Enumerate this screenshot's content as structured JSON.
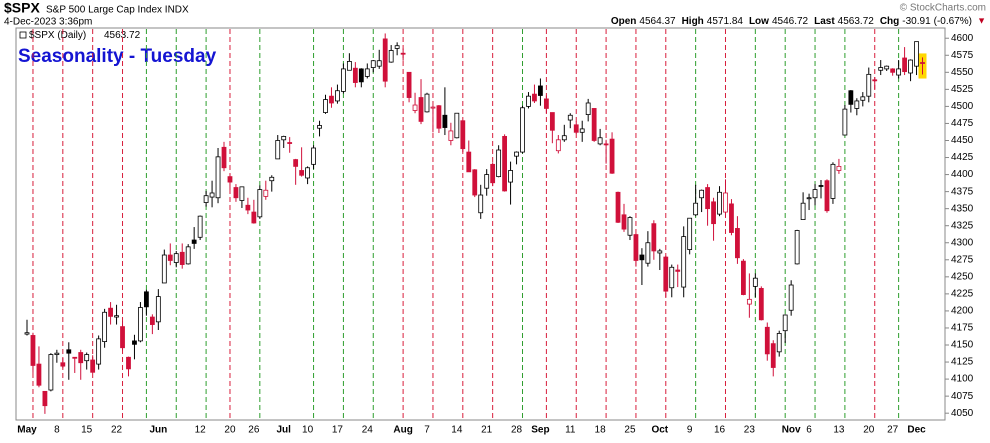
{
  "chart_data": {
    "type": "candlestick",
    "symbol": "$SPX",
    "name": "S&P 500 Large Cap Index INDX",
    "datetime": "4-Dec-2023 3:36pm",
    "credit": "© StockCharts.com",
    "quote": [
      {
        "label": "Open",
        "value": 4564.37
      },
      {
        "label": "High",
        "value": 4571.84
      },
      {
        "label": "Low",
        "value": 4546.72
      },
      {
        "label": "Last",
        "value": 4563.72
      },
      {
        "label": "Chg",
        "value": -30.91
      }
    ],
    "chg_pct": {
      "value": -0.67,
      "label": "(-0.67%)"
    },
    "chg_arrow": "▼",
    "legend": "$SPX (Daily)",
    "legend_value": 4563.72,
    "title": "Seasonality - Tuesday",
    "up_color": "#2e9e2e",
    "down_color": "#d81e3c",
    "candle_up_color": "#000000",
    "candle_down_color": "#d0103a",
    "categories": [
      "May",
      null,
      null,
      null,
      null,
      "8",
      null,
      null,
      null,
      null,
      "15",
      null,
      null,
      null,
      null,
      "22",
      null,
      null,
      null,
      null,
      null,
      null,
      "Jun",
      null,
      null,
      null,
      null,
      null,
      null,
      "12",
      null,
      null,
      null,
      null,
      "20",
      null,
      null,
      null,
      "26",
      null,
      null,
      null,
      null,
      "Jul",
      null,
      null,
      null,
      "10",
      null,
      null,
      null,
      null,
      "17",
      null,
      null,
      null,
      null,
      "24",
      null,
      null,
      null,
      null,
      null,
      "Aug",
      null,
      null,
      null,
      "7",
      null,
      null,
      null,
      null,
      "14",
      null,
      null,
      null,
      null,
      "21",
      null,
      null,
      null,
      null,
      "28",
      null,
      null,
      null,
      "Sep",
      null,
      null,
      null,
      null,
      "11",
      null,
      null,
      null,
      null,
      "18",
      null,
      null,
      null,
      null,
      "25",
      null,
      null,
      null,
      null,
      "Oct",
      null,
      null,
      null,
      null,
      "9",
      null,
      null,
      null,
      null,
      "16",
      null,
      null,
      null,
      null,
      "23",
      null,
      null,
      null,
      null,
      null,
      null,
      "Nov",
      null,
      null,
      "6",
      null,
      null,
      null,
      null,
      "13",
      null,
      null,
      null,
      null,
      "20",
      null,
      null,
      null,
      "27",
      null,
      null,
      null,
      "Dec",
      null
    ],
    "tuesdays": [
      1,
      6,
      11,
      16,
      20,
      25,
      30,
      34,
      39,
      48,
      53,
      58,
      63,
      68,
      73,
      78,
      83,
      87,
      92,
      97,
      102,
      107,
      112,
      117,
      122,
      127,
      132,
      137,
      142,
      146
    ],
    "open": [
      4166,
      4164,
      4122,
      4082,
      4084,
      4136,
      4124,
      4143,
      4132,
      4139,
      4127,
      4128,
      4122,
      4155,
      4204,
      4191,
      4177,
      4132,
      4156,
      4156,
      4228,
      4191,
      4184,
      4241,
      4282,
      4271,
      4286,
      4269,
      4304,
      4308,
      4359,
      4367,
      4366,
      4440,
      4397,
      4381,
      4362,
      4355,
      4345,
      4338,
      4368,
      4391,
      4423,
      4451,
      4447,
      4422,
      4406,
      4395,
      4415,
      4468,
      4491,
      4515,
      4508,
      4522,
      4553,
      4556,
      4555,
      4544,
      4557,
      4559,
      4599,
      4565,
      4585,
      4578,
      4550,
      4494,
      4513,
      4492,
      4498,
      4501,
      4487,
      4450,
      4454,
      4479,
      4433,
      4407,
      4344,
      4380,
      4415,
      4397,
      4456,
      4389,
      4427,
      4433,
      4500,
      4518,
      4530,
      4511,
      4491,
      4435,
      4451,
      4480,
      4473,
      4462,
      4488,
      4497,
      4445,
      4445,
      4452,
      4374,
      4341,
      4311,
      4312,
      4282,
      4270,
      4328,
      4285,
      4279,
      4234,
      4260,
      4235,
      4290,
      4341,
      4366,
      4381,
      4360,
      4342,
      4345,
      4357,
      4321,
      4273,
      4210,
      4236,
      4233,
      4176,
      4152,
      4140,
      4171,
      4201,
      4269,
      4334,
      4365,
      4366,
      4384,
      4391,
      4365,
      4406,
      4458,
      4523,
      4497,
      4509,
      4515,
      4539,
      4553,
      4555,
      4555,
      4546,
      4571,
      4549,
      4559,
      4564.37
    ],
    "high": [
      4187,
      4168,
      4148,
      4082,
      4138,
      4143,
      4131,
      4154,
      4132,
      4143,
      4139,
      4135,
      4164,
      4203,
      4213,
      4209,
      4185,
      4133,
      4165,
      4213,
      4231,
      4195,
      4232,
      4290,
      4299,
      4288,
      4299,
      4298,
      4323,
      4340,
      4376,
      4391,
      4439,
      4448,
      4401,
      4386,
      4382,
      4366,
      4363,
      4384,
      4391,
      4399,
      4458,
      4457,
      4455,
      4423,
      4440,
      4412,
      4443,
      4479,
      4517,
      4528,
      4532,
      4563,
      4578,
      4565,
      4556,
      4563,
      4568,
      4583,
      4607,
      4590,
      4594,
      4585,
      4550,
      4520,
      4540,
      4520,
      4501,
      4502,
      4528,
      4476,
      4490,
      4479,
      4450,
      4408,
      4385,
      4408,
      4418,
      4443,
      4459,
      4419,
      4434,
      4501,
      4521,
      4532,
      4541,
      4516,
      4491,
      4458,
      4473,
      4490,
      4478,
      4479,
      4511,
      4497,
      4467,
      4451,
      4462,
      4375,
      4357,
      4339,
      4313,
      4292,
      4317,
      4333,
      4291,
      4281,
      4268,
      4268,
      4324,
      4336,
      4385,
      4378,
      4386,
      4366,
      4383,
      4393,
      4364,
      4339,
      4276,
      4255,
      4255,
      4236,
      4183,
      4157,
      4171,
      4195,
      4245,
      4319,
      4374,
      4372,
      4386,
      4392,
      4393,
      4418,
      4423,
      4502,
      4524,
      4512,
      4521,
      4557,
      4543,
      4568,
      4560,
      4556,
      4568,
      4587,
      4569,
      4595,
      4571.84
    ],
    "low": [
      4164,
      4109,
      4088,
      4049,
      4082,
      4124,
      4116,
      4099,
      4109,
      4099,
      4114,
      4109,
      4114,
      4146,
      4180,
      4180,
      4142,
      4104,
      4129,
      4154,
      4193,
      4166,
      4172,
      4241,
      4267,
      4264,
      4262,
      4268,
      4291,
      4304,
      4353,
      4352,
      4358,
      4405,
      4378,
      4360,
      4351,
      4342,
      4328,
      4335,
      4363,
      4375,
      4423,
      4439,
      4432,
      4385,
      4397,
      4386,
      4408,
      4456,
      4489,
      4498,
      4504,
      4519,
      4553,
      4528,
      4528,
      4541,
      4550,
      4555,
      4528,
      4564,
      4575,
      4567,
      4506,
      4490,
      4474,
      4491,
      4462,
      4461,
      4458,
      4443,
      4453,
      4433,
      4404,
      4367,
      4335,
      4369,
      4383,
      4396,
      4375,
      4356,
      4415,
      4431,
      4497,
      4505,
      4501,
      4490,
      4446,
      4431,
      4448,
      4468,
      4460,
      4448,
      4478,
      4448,
      4443,
      4416,
      4401,
      4329,
      4316,
      4304,
      4265,
      4238,
      4265,
      4275,
      4260,
      4220,
      4220,
      4235,
      4220,
      4283,
      4339,
      4345,
      4325,
      4303,
      4339,
      4338,
      4311,
      4269,
      4223,
      4190,
      4220,
      4186,
      4127,
      4104,
      4133,
      4153,
      4193,
      4268,
      4334,
      4348,
      4355,
      4365,
      4344,
      4357,
      4401,
      4458,
      4491,
      4487,
      4500,
      4506,
      4525,
      4546,
      4552,
      4545,
      4541,
      4546,
      4537,
      4546,
      4546.72
    ],
    "close": [
      4168,
      4120,
      4091,
      4061,
      4136,
      4138,
      4119,
      4138,
      4131,
      4124,
      4136,
      4110,
      4159,
      4198,
      4192,
      4193,
      4146,
      4115,
      4151,
      4205,
      4206,
      4180,
      4221,
      4282,
      4274,
      4284,
      4268,
      4294,
      4299,
      4339,
      4369,
      4373,
      4426,
      4410,
      4389,
      4366,
      4382,
      4348,
      4329,
      4378,
      4377,
      4396,
      4450,
      4456,
      4447,
      4412,
      4399,
      4410,
      4439,
      4472,
      4510,
      4505,
      4523,
      4555,
      4566,
      4535,
      4536,
      4555,
      4567,
      4567,
      4537,
      4582,
      4589,
      4577,
      4513,
      4502,
      4478,
      4518,
      4499,
      4468,
      4469,
      4464,
      4490,
      4438,
      4404,
      4370,
      4370,
      4400,
      4388,
      4436,
      4376,
      4406,
      4433,
      4498,
      4515,
      4508,
      4516,
      4497,
      4465,
      4451,
      4457,
      4487,
      4462,
      4467,
      4505,
      4450,
      4454,
      4444,
      4402,
      4330,
      4320,
      4337,
      4274,
      4275,
      4300,
      4288,
      4288,
      4229,
      4264,
      4258,
      4309,
      4336,
      4358,
      4377,
      4350,
      4328,
      4374,
      4373,
      4315,
      4278,
      4224,
      4217,
      4248,
      4187,
      4137,
      4117,
      4167,
      4194,
      4238,
      4318,
      4358,
      4366,
      4378,
      4383,
      4347,
      4415,
      4412,
      4496,
      4503,
      4508,
      4514,
      4547,
      4538,
      4557,
      4559,
      4550,
      4555,
      4551,
      4568,
      4595,
      4563.72
    ],
    "ylim": [
      4040,
      4615
    ],
    "yticks": [
      4050,
      4075,
      4100,
      4125,
      4150,
      4175,
      4200,
      4225,
      4250,
      4275,
      4300,
      4325,
      4350,
      4375,
      4400,
      4425,
      4450,
      4475,
      4500,
      4525,
      4550,
      4575,
      4600
    ]
  }
}
